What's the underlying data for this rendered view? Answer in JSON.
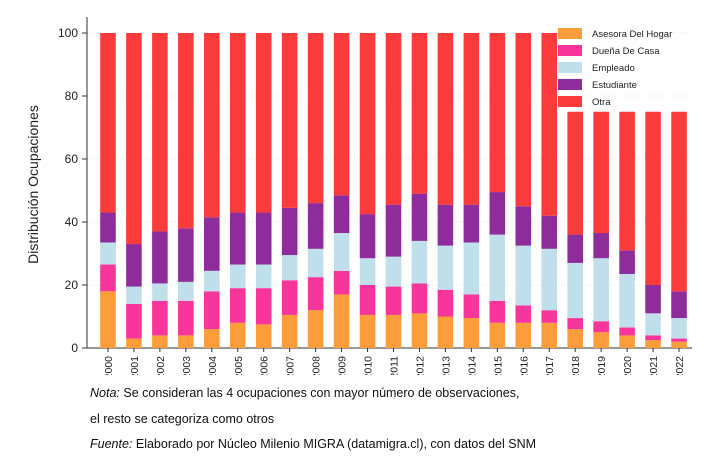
{
  "colors": {
    "Asesora Del Hogar": "#fb9d3a",
    "Dueña De Casa": "#f7359a",
    "Empleado": "#bfe0ea",
    "Estudiante": "#8e2c9b",
    "Otra": "#fb3b3b"
  },
  "chart_data": {
    "type": "bar",
    "stacked": true,
    "ylabel": "Distribución Ocupaciones",
    "xlabel": "",
    "ylim": [
      0,
      100
    ],
    "yticks": [
      0,
      20,
      40,
      60,
      80,
      100
    ],
    "grid": true,
    "legend_position": "top-right",
    "categories": [
      "2000",
      "2001",
      "2002",
      "2003",
      "2004",
      "2005",
      "2006",
      "2007",
      "2008",
      "2009",
      "2010",
      "2011",
      "2012",
      "2013",
      "2014",
      "2015",
      "2016",
      "2017",
      "2018",
      "2019",
      "2020",
      "2021",
      "2022"
    ],
    "series": [
      {
        "name": "Asesora Del Hogar",
        "values": [
          18,
          3,
          4,
          4,
          6,
          8,
          7.5,
          10.5,
          12,
          17,
          10.5,
          10.5,
          11,
          10,
          9.5,
          8,
          8,
          8,
          6,
          5,
          4,
          2.5,
          2
        ]
      },
      {
        "name": "Dueña De Casa",
        "values": [
          8.5,
          11,
          11,
          11,
          12,
          11,
          11.5,
          11,
          10.5,
          7.5,
          9.5,
          9,
          9.5,
          8.5,
          7.5,
          7,
          5.5,
          4,
          3.5,
          3.5,
          2.5,
          1.5,
          1
        ]
      },
      {
        "name": "Empleado",
        "values": [
          7,
          5.5,
          5.5,
          6,
          6.5,
          7.5,
          7.5,
          8,
          9,
          12,
          8.5,
          9.5,
          13.5,
          14,
          16.5,
          21,
          19,
          19.5,
          17.5,
          20,
          17,
          7,
          6.5
        ]
      },
      {
        "name": "Estudiante",
        "values": [
          9.5,
          13.5,
          16.5,
          17,
          17,
          16.5,
          16.5,
          15,
          14.5,
          12,
          14,
          16.5,
          15,
          13,
          12,
          13.5,
          12.5,
          10.5,
          9,
          8,
          7.5,
          9,
          8.5
        ]
      },
      {
        "name": "Otra",
        "values": [
          57,
          67,
          63,
          62,
          58.5,
          57,
          57,
          55.5,
          54,
          51.5,
          57.5,
          54.5,
          51,
          54.5,
          54.5,
          50.5,
          55,
          58,
          39,
          38.5,
          44,
          55,
          57
        ]
      }
    ]
  },
  "notes": {
    "nota_label": "Nota:",
    "nota_text": " Se consideran las 4 ocupaciones con mayor número de observaciones,",
    "line2": "el resto se categoriza como otros",
    "fuente_label": "Fuente:",
    "fuente_text": " Elaborado por Núcleo Milenio MIGRA (datamigra.cl), con datos del SNM"
  }
}
